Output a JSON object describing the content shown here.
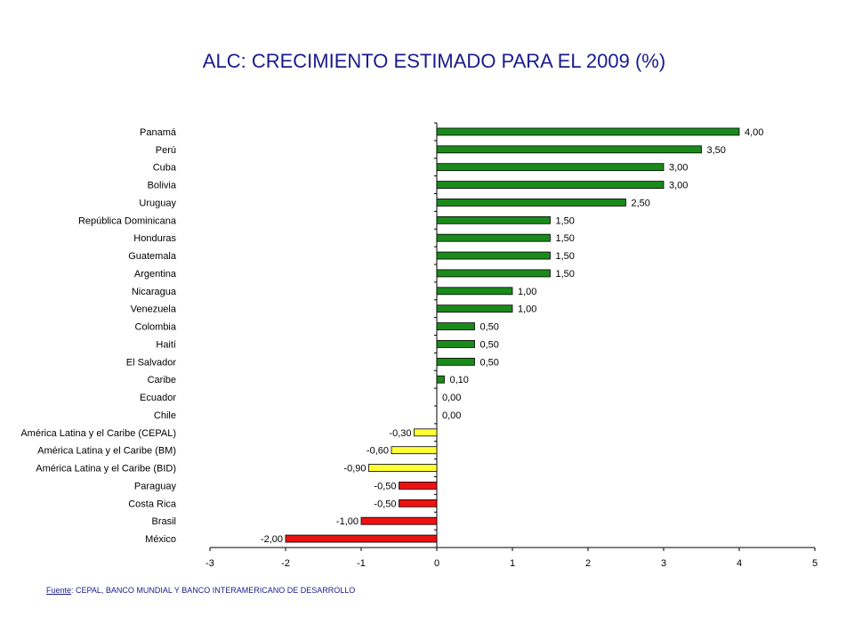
{
  "page": {
    "title": "ALC:  CRECIMIENTO ESTIMADO PARA EL 2009 (%)",
    "source_label": "Fuente",
    "source_text": ": CEPAL, BANCO MUNDIAL Y BANCO INTERAMERICANO DE DESARROLLO"
  },
  "chart_data": {
    "type": "bar",
    "orientation": "horizontal",
    "title": "ALC:  CRECIMIENTO ESTIMADO PARA EL 2009 (%)",
    "xlim": [
      -3,
      5
    ],
    "xticks": [
      "-3",
      "-2",
      "-1",
      "0",
      "1",
      "2",
      "3",
      "4",
      "5"
    ],
    "grid": false,
    "colors": {
      "positive": "#1a8a1a",
      "regional": "#ffff33",
      "negative": "#ee1111"
    },
    "bars": [
      {
        "label": "Panamá",
        "value": 4.0,
        "text": "4,00",
        "color": "positive"
      },
      {
        "label": "Perú",
        "value": 3.5,
        "text": "3,50",
        "color": "positive"
      },
      {
        "label": "Cuba",
        "value": 3.0,
        "text": "3,00",
        "color": "positive"
      },
      {
        "label": "Bolivia",
        "value": 3.0,
        "text": "3,00",
        "color": "positive"
      },
      {
        "label": "Uruguay",
        "value": 2.5,
        "text": "2,50",
        "color": "positive"
      },
      {
        "label": "República Dominicana",
        "value": 1.5,
        "text": "1,50",
        "color": "positive"
      },
      {
        "label": "Honduras",
        "value": 1.5,
        "text": "1,50",
        "color": "positive"
      },
      {
        "label": "Guatemala",
        "value": 1.5,
        "text": "1,50",
        "color": "positive"
      },
      {
        "label": "Argentina",
        "value": 1.5,
        "text": "1,50",
        "color": "positive"
      },
      {
        "label": "Nicaragua",
        "value": 1.0,
        "text": "1,00",
        "color": "positive"
      },
      {
        "label": "Venezuela",
        "value": 1.0,
        "text": "1,00",
        "color": "positive"
      },
      {
        "label": "Colombia",
        "value": 0.5,
        "text": "0,50",
        "color": "positive"
      },
      {
        "label": "Haití",
        "value": 0.5,
        "text": "0,50",
        "color": "positive"
      },
      {
        "label": "El Salvador",
        "value": 0.5,
        "text": "0,50",
        "color": "positive"
      },
      {
        "label": "Caribe",
        "value": 0.1,
        "text": "0,10",
        "color": "positive"
      },
      {
        "label": "Ecuador",
        "value": 0.0,
        "text": "0,00",
        "color": "positive"
      },
      {
        "label": "Chile",
        "value": 0.0,
        "text": "0,00",
        "color": "positive"
      },
      {
        "label": "América Latina y el Caribe (CEPAL)",
        "value": -0.3,
        "text": "-0,30",
        "color": "regional"
      },
      {
        "label": "América Latina y el Caribe (BM)",
        "value": -0.6,
        "text": "-0,60",
        "color": "regional"
      },
      {
        "label": "América Latina y el Caribe (BID)",
        "value": -0.9,
        "text": "-0,90",
        "color": "regional"
      },
      {
        "label": "Paraguay",
        "value": -0.5,
        "text": "-0,50",
        "color": "negative"
      },
      {
        "label": "Costa Rica",
        "value": -0.5,
        "text": "-0,50",
        "color": "negative"
      },
      {
        "label": "Brasil",
        "value": -1.0,
        "text": "-1,00",
        "color": "negative"
      },
      {
        "label": "México",
        "value": -2.0,
        "text": "-2,00",
        "color": "negative"
      }
    ]
  }
}
